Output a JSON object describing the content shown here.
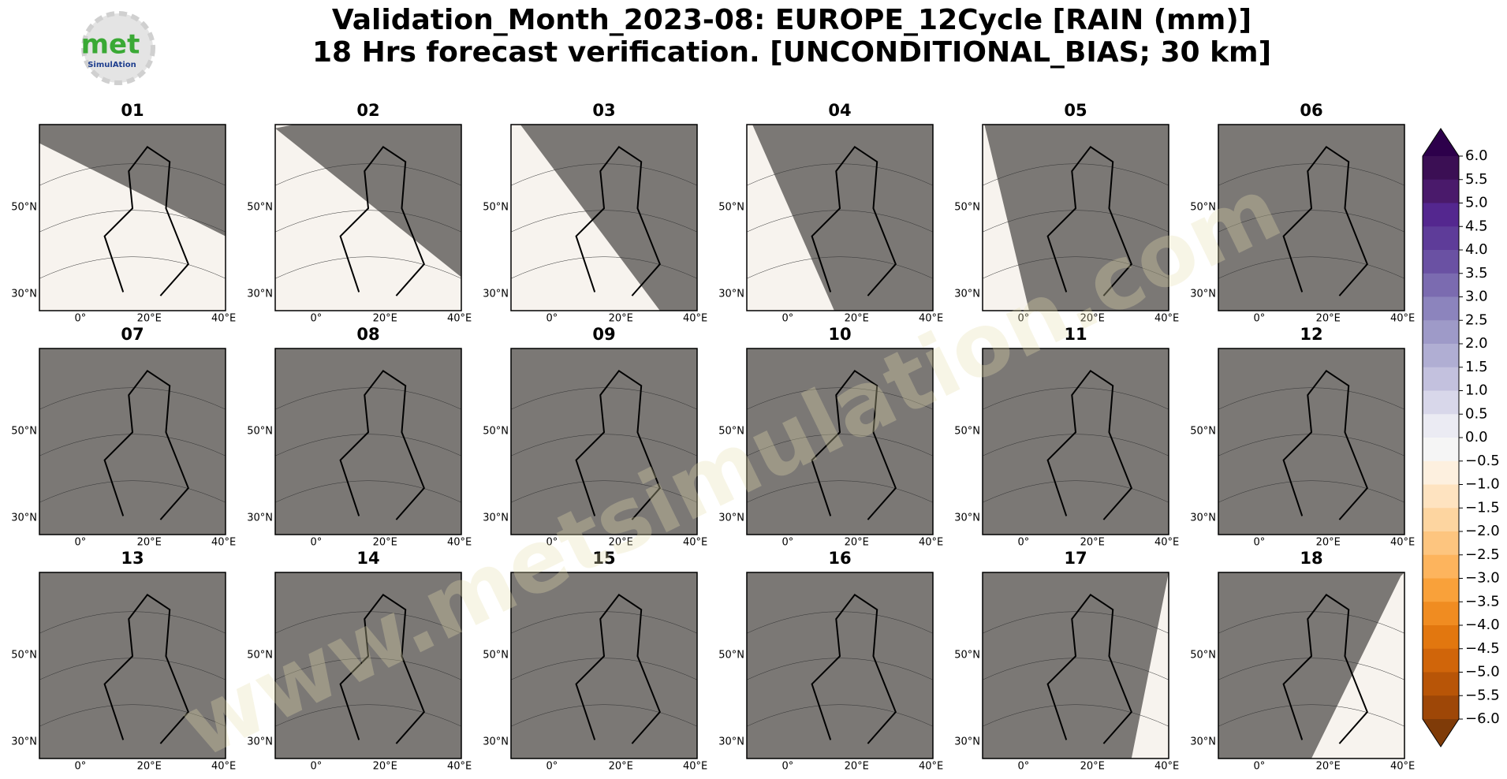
{
  "header": {
    "title": [
      "Validation_Month_2023-08: EUROPE_12Cycle [RAIN (mm)]",
      "18 Hrs forecast verification. [UNCONDITIONAL_BIAS; 30 km]"
    ]
  },
  "logo": {
    "text": "met",
    "subtext": "SimulAtion"
  },
  "watermark": "www.metsimulation.com",
  "map_axis": {
    "lat_labels": [
      "50°N",
      "30°N"
    ],
    "lon_labels": [
      "0°",
      "20°E",
      "40°E"
    ]
  },
  "panels": [
    {
      "title": "01"
    },
    {
      "title": "02"
    },
    {
      "title": "03"
    },
    {
      "title": "04"
    },
    {
      "title": "05"
    },
    {
      "title": "06"
    },
    {
      "title": "07"
    },
    {
      "title": "08"
    },
    {
      "title": "09"
    },
    {
      "title": "10"
    },
    {
      "title": "11"
    },
    {
      "title": "12"
    },
    {
      "title": "13"
    },
    {
      "title": "14"
    },
    {
      "title": "15"
    },
    {
      "title": "16"
    },
    {
      "title": "17"
    },
    {
      "title": "18"
    }
  ],
  "colorbar": {
    "lim": [
      -6,
      6
    ],
    "ticks": [
      {
        "value": 6,
        "label": "6.0"
      },
      {
        "value": 5.5,
        "label": "5.5"
      },
      {
        "value": 5,
        "label": "5.0"
      },
      {
        "value": 4.5,
        "label": "4.5"
      },
      {
        "value": 4,
        "label": "4.0"
      },
      {
        "value": 3.5,
        "label": "3.5"
      },
      {
        "value": 3,
        "label": "3.0"
      },
      {
        "value": 2.5,
        "label": "2.5"
      },
      {
        "value": 2,
        "label": "2.0"
      },
      {
        "value": 1.5,
        "label": "1.5"
      },
      {
        "value": 1,
        "label": "1.0"
      },
      {
        "value": 0.5,
        "label": "0.5"
      },
      {
        "value": 0,
        "label": "0.0"
      },
      {
        "value": -0.5,
        "label": "−0.5"
      },
      {
        "value": -1,
        "label": "−1.0"
      },
      {
        "value": -1.5,
        "label": "−1.5"
      },
      {
        "value": -2,
        "label": "−2.0"
      },
      {
        "value": -2.5,
        "label": "−2.5"
      },
      {
        "value": -3,
        "label": "−3.0"
      },
      {
        "value": -3.5,
        "label": "−3.5"
      },
      {
        "value": -4,
        "label": "−4.0"
      },
      {
        "value": -4.5,
        "label": "−4.5"
      },
      {
        "value": -5,
        "label": "−5.0"
      },
      {
        "value": -5.5,
        "label": "−5.5"
      },
      {
        "value": -6,
        "label": "−6.0"
      }
    ],
    "colors": [
      "#3b0f54",
      "#4a1a6b",
      "#54278f",
      "#5e3c99",
      "#6a51a3",
      "#7b6bb0",
      "#8c84bd",
      "#9e9ac8",
      "#b0aed3",
      "#c3c1de",
      "#d8d7ea",
      "#ebebf3",
      "#f5f5f5",
      "#fdf0df",
      "#fee3c0",
      "#fdd5a0",
      "#fdc57f",
      "#fdb45d",
      "#f9a13a",
      "#f08c21",
      "#e2770f",
      "#d0650a",
      "#b85507",
      "#9e4707"
    ],
    "extend_colors": [
      "#2d004b",
      "#7f3b08"
    ]
  }
}
